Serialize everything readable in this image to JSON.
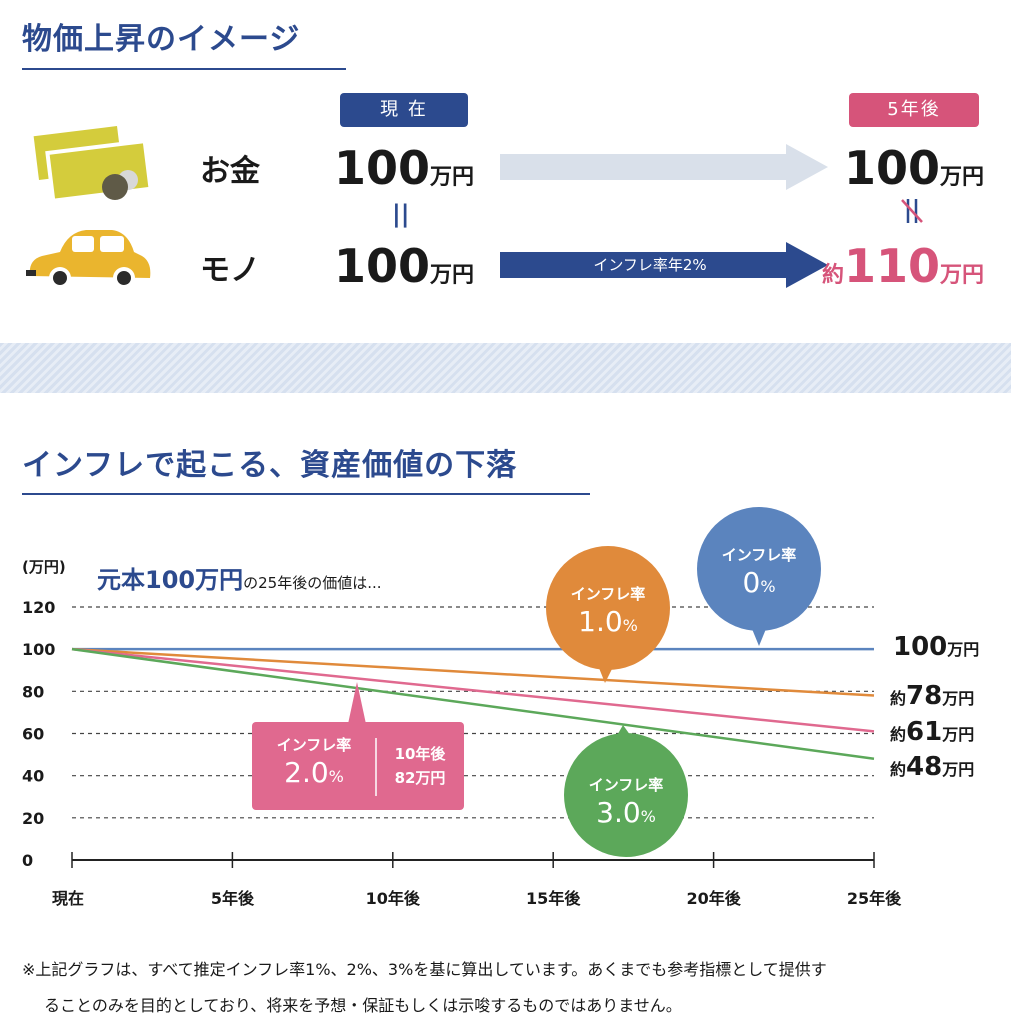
{
  "section1": {
    "title": "物価上昇のイメージ",
    "badge_now": "現 在",
    "badge_future": "5年後",
    "row_money_label": "お金",
    "row_goods_label": "モノ",
    "money_now_value": "100",
    "money_now_unit": "万円",
    "goods_now_value": "100",
    "goods_now_unit": "万円",
    "money_future_value": "100",
    "money_future_unit": "万円",
    "goods_future_prefix": "約",
    "goods_future_value": "110",
    "goods_future_unit": "万円",
    "equal_sign": "||",
    "arrow_label": "インフレ率年2%",
    "colors": {
      "navy": "#2c4a8e",
      "pink": "#d6547a",
      "arrow_light": "#d9e0ea",
      "card": "#d4cc3c",
      "car": "#eab52e"
    }
  },
  "section2": {
    "title": "インフレで起こる、資産価値の下落"
  },
  "chart_data": {
    "type": "line",
    "unit_label": "(万円)",
    "subtitle_main": "元本100万円",
    "subtitle_rest": "の25年後の価値は...",
    "x": [
      0,
      25
    ],
    "categories": [
      "現在",
      "5年後",
      "10年後",
      "15年後",
      "20年後",
      "25年後"
    ],
    "ylim": [
      0,
      120
    ],
    "yticks": [
      0,
      20,
      40,
      60,
      80,
      100,
      120
    ],
    "grid": true,
    "series": [
      {
        "name": "インフレ率0%",
        "color": "#5b84be",
        "values": [
          100,
          100
        ]
      },
      {
        "name": "インフレ率1.0%",
        "color": "#e08a3b",
        "values": [
          100,
          78
        ]
      },
      {
        "name": "インフレ率2.0%",
        "color": "#e0698f",
        "values": [
          100,
          61
        ]
      },
      {
        "name": "インフレ率3.0%",
        "color": "#5ca85a",
        "values": [
          100,
          48
        ]
      }
    ],
    "end_labels": [
      {
        "prefix": "",
        "value": "100",
        "unit": "万円",
        "color": "#5b84be"
      },
      {
        "prefix": "約",
        "value": "78",
        "unit": "万円",
        "color": "#e08a3b"
      },
      {
        "prefix": "約",
        "value": "61",
        "unit": "万円",
        "color": "#e0698f"
      },
      {
        "prefix": "約",
        "value": "48",
        "unit": "万円",
        "color": "#5ca85a"
      }
    ],
    "callouts": [
      {
        "label": "インフレ率",
        "rate": "0",
        "pct": "%",
        "color": "#5b84be"
      },
      {
        "label": "インフレ率",
        "rate": "1.0",
        "pct": "%",
        "color": "#e08a3b"
      },
      {
        "label": "インフレ率",
        "rate": "2.0",
        "pct": "%",
        "color": "#e0698f",
        "extra_top": "10年後",
        "extra_bottom": "82万円"
      },
      {
        "label": "インフレ率",
        "rate": "3.0",
        "pct": "%",
        "color": "#5ca85a"
      }
    ]
  },
  "footnote": {
    "line1": "※上記グラフは、すべて推定インフレ率1%、2%、3%を基に算出しています。あくまでも参考指標として提供す",
    "line2": "ることのみを目的としており、将来を予想・保証もしくは示唆するものではありません。"
  }
}
